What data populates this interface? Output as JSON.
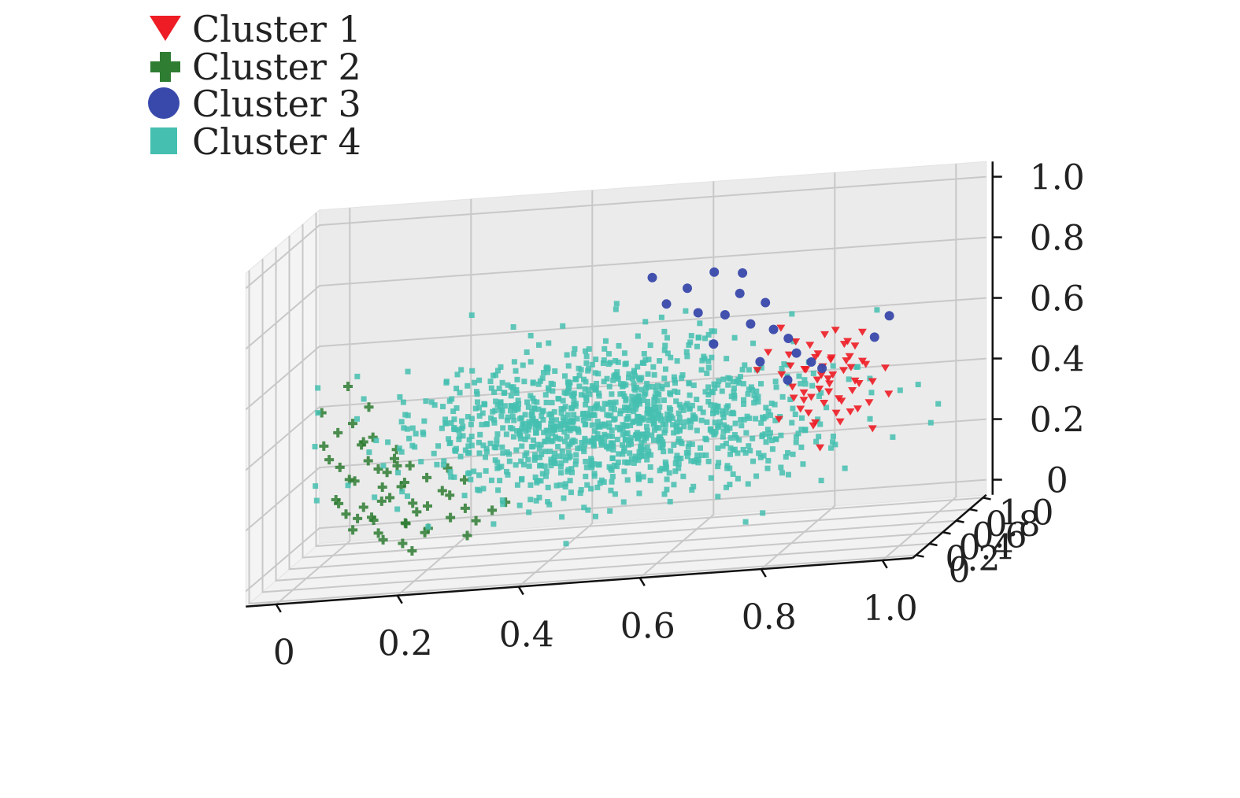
{
  "chart_data": {
    "type": "scatter",
    "title": "",
    "xlabel": "",
    "ylabel": "",
    "zlabel": "",
    "projection": "3d",
    "grid": true,
    "legend_position": "top-left",
    "xlim": [
      0,
      1.0
    ],
    "ylim": [
      0,
      1.0
    ],
    "zlim": [
      0,
      1.0
    ],
    "x_ticks": [
      "0",
      "0.2",
      "0.4",
      "0.6",
      "0.8",
      "1.0"
    ],
    "y_ticks": [
      "0",
      "0.2",
      "0.4",
      "0.6",
      "0.8",
      "1.0"
    ],
    "z_ticks": [
      "0",
      "0.2",
      "0.4",
      "0.6",
      "0.8",
      "1.0"
    ],
    "series": [
      {
        "name": "Cluster 1",
        "marker": "triangle-down",
        "color": "#ee1c25",
        "points": [
          [
            0.78,
            0.8,
            0.45
          ],
          [
            0.8,
            0.82,
            0.38
          ],
          [
            0.82,
            0.84,
            0.42
          ],
          [
            0.75,
            0.82,
            0.5
          ],
          [
            0.85,
            0.86,
            0.36
          ],
          [
            0.83,
            0.8,
            0.3
          ],
          [
            0.79,
            0.85,
            0.48
          ],
          [
            0.87,
            0.88,
            0.44
          ],
          [
            0.76,
            0.78,
            0.4
          ],
          [
            0.81,
            0.9,
            0.46
          ],
          [
            0.84,
            0.83,
            0.52
          ],
          [
            0.77,
            0.86,
            0.34
          ],
          [
            0.86,
            0.81,
            0.4
          ],
          [
            0.8,
            0.76,
            0.28
          ],
          [
            0.88,
            0.84,
            0.32
          ],
          [
            0.74,
            0.8,
            0.44
          ],
          [
            0.82,
            0.88,
            0.56
          ],
          [
            0.79,
            0.79,
            0.36
          ],
          [
            0.85,
            0.9,
            0.5
          ],
          [
            0.83,
            0.86,
            0.26
          ],
          [
            0.78,
            0.84,
            0.3
          ],
          [
            0.81,
            0.78,
            0.46
          ],
          [
            0.86,
            0.87,
            0.38
          ],
          [
            0.76,
            0.83,
            0.54
          ],
          [
            0.84,
            0.79,
            0.34
          ],
          [
            0.8,
            0.85,
            0.42
          ],
          [
            0.87,
            0.83,
            0.46
          ],
          [
            0.77,
            0.81,
            0.32
          ],
          [
            0.82,
            0.82,
            0.48
          ],
          [
            0.79,
            0.88,
            0.4
          ],
          [
            0.85,
            0.84,
            0.44
          ],
          [
            0.81,
            0.87,
            0.36
          ],
          [
            0.83,
            0.91,
            0.42
          ],
          [
            0.78,
            0.77,
            0.38
          ],
          [
            0.86,
            0.85,
            0.3
          ],
          [
            0.75,
            0.84,
            0.46
          ],
          [
            0.84,
            0.88,
            0.52
          ],
          [
            0.8,
            0.8,
            0.5
          ],
          [
            0.82,
            0.79,
            0.4
          ],
          [
            0.77,
            0.87,
            0.44
          ],
          [
            0.88,
            0.89,
            0.38
          ],
          [
            0.79,
            0.82,
            0.26
          ],
          [
            0.83,
            0.84,
            0.34
          ],
          [
            0.81,
            0.81,
            0.56
          ],
          [
            0.76,
            0.8,
            0.36
          ],
          [
            0.85,
            0.82,
            0.48
          ],
          [
            0.8,
            0.89,
            0.32
          ],
          [
            0.84,
            0.86,
            0.46
          ],
          [
            0.78,
            0.86,
            0.52
          ],
          [
            0.82,
            0.77,
            0.42
          ],
          [
            0.74,
            0.76,
            0.3
          ],
          [
            0.9,
            0.9,
            0.42
          ],
          [
            0.72,
            0.78,
            0.52
          ],
          [
            0.89,
            0.8,
            0.24
          ],
          [
            0.73,
            0.88,
            0.58
          ],
          [
            0.86,
            0.92,
            0.54
          ],
          [
            0.7,
            0.8,
            0.46
          ],
          [
            0.91,
            0.86,
            0.34
          ],
          [
            0.81,
            0.74,
            0.2
          ],
          [
            0.84,
            0.92,
            0.28
          ]
        ]
      },
      {
        "name": "Cluster 2",
        "marker": "plus",
        "color": "#2e7d32",
        "points": [
          [
            0.06,
            0.3,
            0.22
          ],
          [
            0.1,
            0.35,
            0.18
          ],
          [
            0.08,
            0.4,
            0.26
          ],
          [
            0.12,
            0.32,
            0.14
          ],
          [
            0.05,
            0.45,
            0.3
          ],
          [
            0.14,
            0.38,
            0.2
          ],
          [
            0.09,
            0.28,
            0.12
          ],
          [
            0.16,
            0.42,
            0.24
          ],
          [
            0.11,
            0.48,
            0.28
          ],
          [
            0.07,
            0.36,
            0.16
          ],
          [
            0.13,
            0.3,
            0.1
          ],
          [
            0.18,
            0.36,
            0.18
          ],
          [
            0.04,
            0.38,
            0.34
          ],
          [
            0.15,
            0.46,
            0.22
          ],
          [
            0.1,
            0.42,
            0.32
          ],
          [
            0.2,
            0.4,
            0.16
          ],
          [
            0.08,
            0.5,
            0.36
          ],
          [
            0.17,
            0.34,
            0.12
          ],
          [
            0.12,
            0.52,
            0.26
          ],
          [
            0.06,
            0.34,
            0.2
          ],
          [
            0.22,
            0.44,
            0.2
          ],
          [
            0.14,
            0.28,
            0.08
          ],
          [
            0.09,
            0.44,
            0.38
          ],
          [
            0.19,
            0.48,
            0.24
          ],
          [
            0.11,
            0.38,
            0.14
          ],
          [
            0.24,
            0.38,
            0.12
          ],
          [
            0.05,
            0.42,
            0.42
          ],
          [
            0.16,
            0.5,
            0.28
          ],
          [
            0.13,
            0.36,
            0.24
          ],
          [
            0.21,
            0.32,
            0.1
          ],
          [
            0.07,
            0.46,
            0.44
          ],
          [
            0.18,
            0.42,
            0.14
          ],
          [
            0.1,
            0.26,
            0.16
          ],
          [
            0.23,
            0.46,
            0.18
          ],
          [
            0.15,
            0.4,
            0.3
          ],
          [
            0.12,
            0.44,
            0.18
          ],
          [
            0.26,
            0.42,
            0.14
          ],
          [
            0.08,
            0.32,
            0.28
          ],
          [
            0.2,
            0.36,
            0.08
          ],
          [
            0.14,
            0.48,
            0.34
          ],
          [
            0.03,
            0.36,
            0.5
          ],
          [
            0.25,
            0.5,
            0.22
          ],
          [
            0.17,
            0.3,
            0.06
          ],
          [
            0.09,
            0.52,
            0.48
          ],
          [
            0.28,
            0.4,
            0.1
          ],
          [
            0.11,
            0.4,
            0.4
          ],
          [
            0.22,
            0.52,
            0.26
          ],
          [
            0.06,
            0.48,
            0.56
          ],
          [
            0.19,
            0.26,
            0.04
          ],
          [
            0.13,
            0.54,
            0.3
          ],
          [
            0.3,
            0.46,
            0.12
          ],
          [
            0.04,
            0.3,
            0.4
          ],
          [
            0.27,
            0.36,
            0.06
          ],
          [
            0.16,
            0.44,
            0.1
          ],
          [
            0.32,
            0.48,
            0.14
          ]
        ]
      },
      {
        "name": "Cluster 3",
        "marker": "circle",
        "color": "#3949ab",
        "points": [
          [
            0.62,
            0.88,
            0.78
          ],
          [
            0.58,
            0.84,
            0.74
          ],
          [
            0.66,
            0.9,
            0.7
          ],
          [
            0.7,
            0.92,
            0.66
          ],
          [
            0.55,
            0.8,
            0.7
          ],
          [
            0.64,
            0.86,
            0.64
          ],
          [
            0.72,
            0.86,
            0.58
          ],
          [
            0.68,
            0.88,
            0.6
          ],
          [
            0.6,
            0.82,
            0.66
          ],
          [
            0.74,
            0.9,
            0.54
          ],
          [
            0.76,
            0.84,
            0.5
          ],
          [
            0.66,
            0.94,
            0.76
          ],
          [
            0.78,
            0.88,
            0.46
          ],
          [
            0.63,
            0.78,
            0.56
          ],
          [
            0.8,
            0.86,
            0.44
          ],
          [
            0.88,
            0.92,
            0.52
          ],
          [
            0.9,
            0.96,
            0.58
          ],
          [
            0.52,
            0.86,
            0.78
          ],
          [
            0.7,
            0.84,
            0.48
          ],
          [
            0.75,
            0.8,
            0.42
          ]
        ]
      },
      {
        "name": "Cluster 4",
        "marker": "square",
        "color": "#45bfb0",
        "generated": {
          "count": 1200,
          "center": [
            0.48,
            0.62,
            0.36
          ],
          "spread": [
            0.16,
            0.14,
            0.12
          ]
        }
      }
    ]
  }
}
